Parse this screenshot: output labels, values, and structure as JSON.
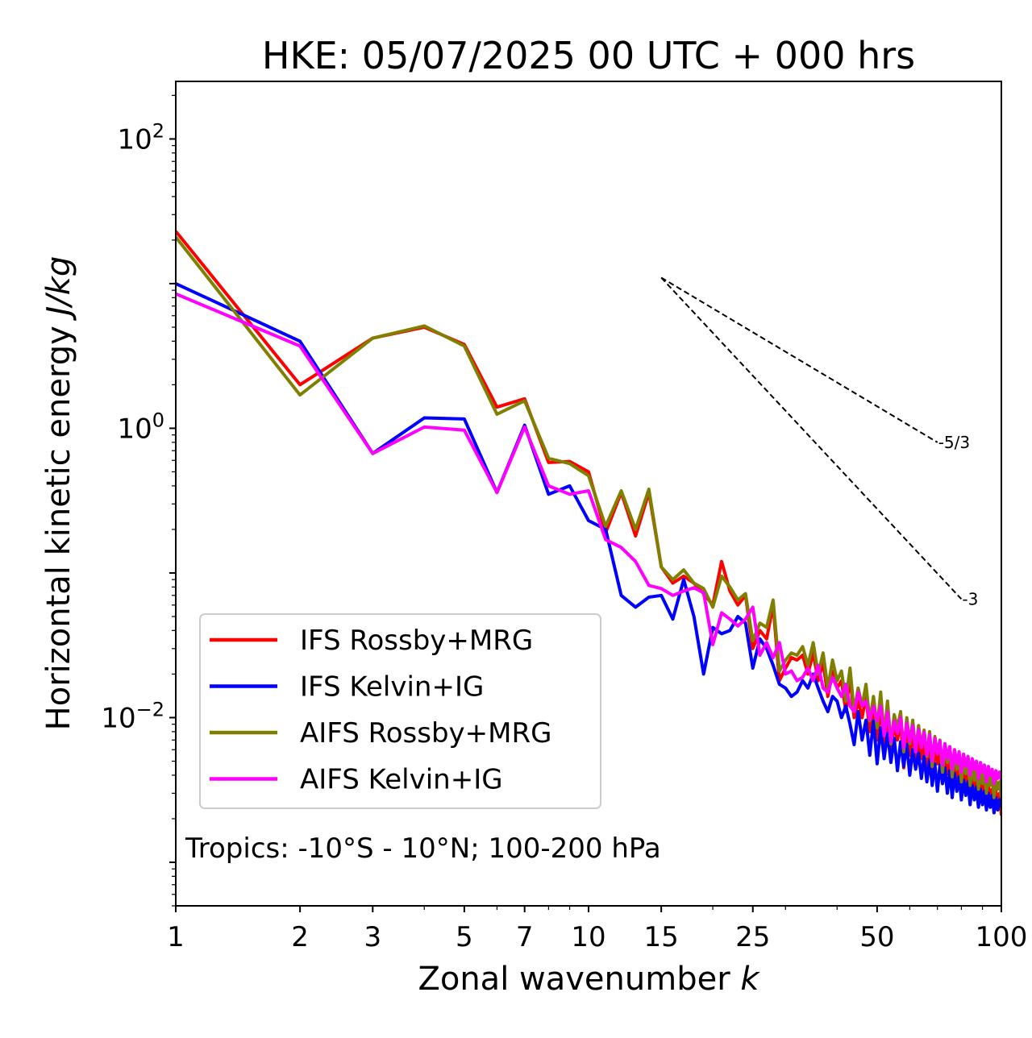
{
  "chart_data": {
    "type": "line",
    "title": "HKE: 05/07/2025 00 UTC + 000 hrs",
    "xlabel_text": "Zonal wavenumber ",
    "xlabel_var": "k",
    "ylabel_text": "Horizontal kinetic energy ",
    "ylabel_unit": "J/kg",
    "xscale": "log",
    "yscale": "log",
    "xlim": [
      1,
      100
    ],
    "ylim": [
      0.0005,
      250
    ],
    "x_ticks": [
      1,
      2,
      3,
      5,
      7,
      10,
      15,
      25,
      50,
      100
    ],
    "x_tick_labels": [
      "1",
      "2",
      "3",
      "5",
      "7",
      "10",
      "15",
      "25",
      "50",
      "100"
    ],
    "y_ticks": [
      {
        "value": 100,
        "base": "10",
        "exp": "2"
      },
      {
        "value": 1,
        "base": "10",
        "exp": "0"
      },
      {
        "value": 0.01,
        "base": "10",
        "exp": "−2"
      }
    ],
    "legend_position": "lower-left",
    "annotation": "Tropics: -10°S - 10°N; 100-200 hPa",
    "reference_lines": [
      {
        "label": "-5/3",
        "x": [
          15,
          70
        ],
        "y": [
          11.0,
          0.8
        ]
      },
      {
        "label": "-3",
        "x": [
          15,
          80
        ],
        "y": [
          11.0,
          0.066
        ]
      }
    ],
    "series": [
      {
        "name": "IFS Rossby+MRG",
        "color": "#ff0000",
        "x": [
          1,
          2,
          3,
          4,
          5,
          6,
          7,
          8,
          9,
          10,
          11,
          12,
          13,
          14,
          15,
          16,
          17,
          18,
          19,
          20,
          21,
          22,
          23,
          24,
          25,
          26,
          27,
          28,
          29,
          30,
          31,
          32,
          33,
          34,
          35,
          36,
          37,
          38,
          39,
          40,
          41,
          42,
          43,
          44,
          45,
          46,
          47,
          48,
          49,
          50,
          51,
          52,
          53,
          54,
          55,
          56,
          57,
          58,
          59,
          60,
          61,
          62,
          63,
          64,
          65,
          66,
          67,
          68,
          69,
          70,
          71,
          72,
          73,
          74,
          75,
          76,
          77,
          78,
          79,
          80,
          81,
          82,
          83,
          84,
          85,
          86,
          87,
          88,
          89,
          90,
          91,
          92,
          93,
          94,
          95,
          96,
          97,
          98,
          99,
          100
        ],
        "y": [
          23,
          2.0,
          4.2,
          5.0,
          3.8,
          1.4,
          1.6,
          0.58,
          0.59,
          0.5,
          0.19,
          0.36,
          0.18,
          0.36,
          0.11,
          0.085,
          0.095,
          0.085,
          0.072,
          0.06,
          0.12,
          0.075,
          0.06,
          0.07,
          0.03,
          0.04,
          0.035,
          0.06,
          0.018,
          0.022,
          0.026,
          0.025,
          0.027,
          0.02,
          0.028,
          0.018,
          0.024,
          0.014,
          0.021,
          0.016,
          0.018,
          0.011,
          0.019,
          0.01,
          0.013,
          0.01,
          0.014,
          0.008,
          0.011,
          0.007,
          0.012,
          0.006,
          0.011,
          0.0055,
          0.009,
          0.007,
          0.0095,
          0.0045,
          0.0085,
          0.0055,
          0.008,
          0.0048,
          0.0072,
          0.0052,
          0.0068,
          0.0045,
          0.0065,
          0.0038,
          0.0061,
          0.0048,
          0.0058,
          0.0035,
          0.0055,
          0.0041,
          0.0052,
          0.0032,
          0.0049,
          0.0036,
          0.0046,
          0.0029,
          0.0044,
          0.0034,
          0.0042,
          0.0028,
          0.004,
          0.0031,
          0.0038,
          0.0026,
          0.0037,
          0.0029,
          0.0035,
          0.0024,
          0.0034,
          0.0028,
          0.0032,
          0.0022,
          0.0031,
          0.0026,
          0.003,
          0.0021
        ]
      },
      {
        "name": "IFS Kelvin+IG",
        "color": "#0000ff",
        "x": [
          1,
          2,
          3,
          4,
          5,
          6,
          7,
          8,
          9,
          10,
          11,
          12,
          13,
          14,
          15,
          16,
          17,
          18,
          19,
          20,
          21,
          22,
          23,
          24,
          25,
          26,
          27,
          28,
          29,
          30,
          31,
          32,
          33,
          34,
          35,
          36,
          37,
          38,
          39,
          40,
          41,
          42,
          43,
          44,
          45,
          46,
          47,
          48,
          49,
          50,
          51,
          52,
          53,
          54,
          55,
          56,
          57,
          58,
          59,
          60,
          61,
          62,
          63,
          64,
          65,
          66,
          67,
          68,
          69,
          70,
          71,
          72,
          73,
          74,
          75,
          76,
          77,
          78,
          79,
          80,
          81,
          82,
          83,
          84,
          85,
          86,
          87,
          88,
          89,
          90,
          91,
          92,
          93,
          94,
          95,
          96,
          97,
          98,
          99,
          100
        ],
        "y": [
          10,
          4.0,
          0.67,
          1.18,
          1.16,
          0.36,
          1.05,
          0.35,
          0.4,
          0.23,
          0.2,
          0.07,
          0.058,
          0.068,
          0.07,
          0.048,
          0.09,
          0.05,
          0.02,
          0.042,
          0.038,
          0.04,
          0.05,
          0.045,
          0.022,
          0.035,
          0.03,
          0.023,
          0.017,
          0.016,
          0.014,
          0.015,
          0.018,
          0.016,
          0.02,
          0.016,
          0.013,
          0.011,
          0.014,
          0.013,
          0.01,
          0.012,
          0.009,
          0.0065,
          0.011,
          0.007,
          0.0096,
          0.0055,
          0.0095,
          0.0048,
          0.0085,
          0.0052,
          0.0078,
          0.0049,
          0.0072,
          0.0043,
          0.0068,
          0.0046,
          0.0065,
          0.004,
          0.006,
          0.0044,
          0.0057,
          0.0038,
          0.0054,
          0.0036,
          0.0051,
          0.0034,
          0.0048,
          0.0031,
          0.0047,
          0.0035,
          0.0045,
          0.003,
          0.0043,
          0.0028,
          0.0041,
          0.0031,
          0.0039,
          0.0027,
          0.0037,
          0.0029,
          0.0036,
          0.0025,
          0.0034,
          0.0027,
          0.0033,
          0.0024,
          0.0032,
          0.0025,
          0.0031,
          0.0023,
          0.003,
          0.0024,
          0.0029,
          0.0022,
          0.0028,
          0.0023,
          0.0027,
          0.0024
        ]
      },
      {
        "name": "AIFS Rossby+MRG",
        "color": "#808000",
        "x": [
          1,
          2,
          3,
          4,
          5,
          6,
          7,
          8,
          9,
          10,
          11,
          12,
          13,
          14,
          15,
          16,
          17,
          18,
          19,
          20,
          21,
          22,
          23,
          24,
          25,
          26,
          27,
          28,
          29,
          30,
          31,
          32,
          33,
          34,
          35,
          36,
          37,
          38,
          39,
          40,
          41,
          42,
          43,
          44,
          45,
          46,
          47,
          48,
          49,
          50,
          51,
          52,
          53,
          54,
          55,
          56,
          57,
          58,
          59,
          60,
          61,
          62,
          63,
          64,
          65,
          66,
          67,
          68,
          69,
          70,
          71,
          72,
          73,
          74,
          75,
          76,
          77,
          78,
          79,
          80,
          81,
          82,
          83,
          84,
          85,
          86,
          87,
          88,
          89,
          90,
          91,
          92,
          93,
          94,
          95,
          96,
          97,
          98,
          99,
          100
        ],
        "y": [
          21,
          1.7,
          4.2,
          5.1,
          3.7,
          1.25,
          1.55,
          0.62,
          0.57,
          0.47,
          0.21,
          0.37,
          0.2,
          0.38,
          0.11,
          0.09,
          0.105,
          0.085,
          0.078,
          0.058,
          0.095,
          0.08,
          0.065,
          0.072,
          0.034,
          0.045,
          0.042,
          0.065,
          0.021,
          0.025,
          0.028,
          0.027,
          0.031,
          0.023,
          0.033,
          0.02,
          0.028,
          0.016,
          0.025,
          0.018,
          0.021,
          0.013,
          0.022,
          0.011,
          0.016,
          0.012,
          0.017,
          0.0095,
          0.014,
          0.0085,
          0.015,
          0.0075,
          0.013,
          0.0066,
          0.0105,
          0.0085,
          0.011,
          0.0058,
          0.01,
          0.0066,
          0.0096,
          0.0058,
          0.0088,
          0.0063,
          0.0082,
          0.0054,
          0.008,
          0.0046,
          0.0074,
          0.0057,
          0.007,
          0.0042,
          0.0066,
          0.0049,
          0.0063,
          0.0039,
          0.006,
          0.0044,
          0.0056,
          0.0036,
          0.0053,
          0.0041,
          0.005,
          0.0034,
          0.0048,
          0.0037,
          0.0046,
          0.0032,
          0.0044,
          0.0035,
          0.0042,
          0.003,
          0.0041,
          0.0034,
          0.0039,
          0.0028,
          0.0037,
          0.0032,
          0.0036,
          0.0028
        ]
      },
      {
        "name": "AIFS Kelvin+IG",
        "color": "#ff00ff",
        "x": [
          1,
          2,
          3,
          4,
          5,
          6,
          7,
          8,
          9,
          10,
          11,
          12,
          13,
          14,
          15,
          16,
          17,
          18,
          19,
          20,
          21,
          22,
          23,
          24,
          25,
          26,
          27,
          28,
          29,
          30,
          31,
          32,
          33,
          34,
          35,
          36,
          37,
          38,
          39,
          40,
          41,
          42,
          43,
          44,
          45,
          46,
          47,
          48,
          49,
          50,
          51,
          52,
          53,
          54,
          55,
          56,
          57,
          58,
          59,
          60,
          61,
          62,
          63,
          64,
          65,
          66,
          67,
          68,
          69,
          70,
          71,
          72,
          73,
          74,
          75,
          76,
          77,
          78,
          79,
          80,
          81,
          82,
          83,
          84,
          85,
          86,
          87,
          88,
          89,
          90,
          91,
          92,
          93,
          94,
          95,
          96,
          97,
          98,
          99,
          100
        ],
        "y": [
          8.5,
          3.7,
          0.67,
          1.02,
          0.97,
          0.36,
          1.02,
          0.4,
          0.35,
          0.37,
          0.17,
          0.15,
          0.12,
          0.082,
          0.078,
          0.07,
          0.075,
          0.079,
          0.073,
          0.032,
          0.053,
          0.048,
          0.043,
          0.048,
          0.058,
          0.027,
          0.033,
          0.026,
          0.033,
          0.02,
          0.021,
          0.018,
          0.019,
          0.022,
          0.018,
          0.023,
          0.016,
          0.015,
          0.019,
          0.016,
          0.014,
          0.017,
          0.012,
          0.011,
          0.015,
          0.012,
          0.013,
          0.0097,
          0.012,
          0.0095,
          0.012,
          0.0075,
          0.011,
          0.0068,
          0.0095,
          0.0078,
          0.01,
          0.0062,
          0.0092,
          0.0068,
          0.0088,
          0.0058,
          0.0083,
          0.0062,
          0.0079,
          0.0055,
          0.0076,
          0.005,
          0.0072,
          0.0056,
          0.0069,
          0.0047,
          0.0066,
          0.0052,
          0.0063,
          0.0044,
          0.006,
          0.0048,
          0.0058,
          0.0042,
          0.0056,
          0.0046,
          0.0054,
          0.004,
          0.0052,
          0.0044,
          0.005,
          0.0038,
          0.0049,
          0.0042,
          0.0047,
          0.0036,
          0.0046,
          0.004,
          0.0044,
          0.0035,
          0.0043,
          0.0038,
          0.0042,
          0.0037
        ]
      }
    ]
  }
}
